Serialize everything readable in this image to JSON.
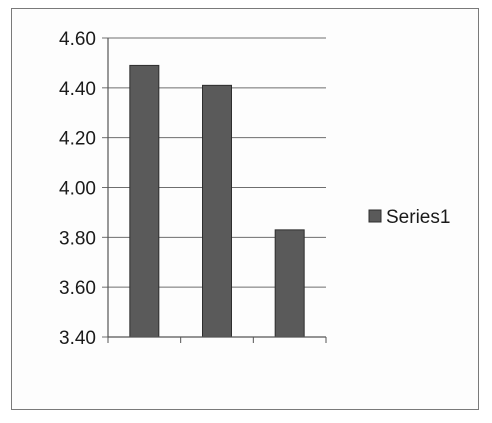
{
  "chart_data": {
    "type": "bar",
    "categories": [
      "",
      "",
      ""
    ],
    "series": [
      {
        "name": "Series1",
        "values": [
          4.49,
          4.41,
          3.83
        ]
      }
    ],
    "ylim": [
      3.4,
      4.6
    ],
    "yticks": [
      "3.40",
      "3.60",
      "3.80",
      "4.00",
      "4.20",
      "4.40",
      "4.60"
    ],
    "title": "",
    "xlabel": "",
    "ylabel": "",
    "grid": true,
    "legend": "right",
    "bar_color": "#5a5a5a"
  }
}
